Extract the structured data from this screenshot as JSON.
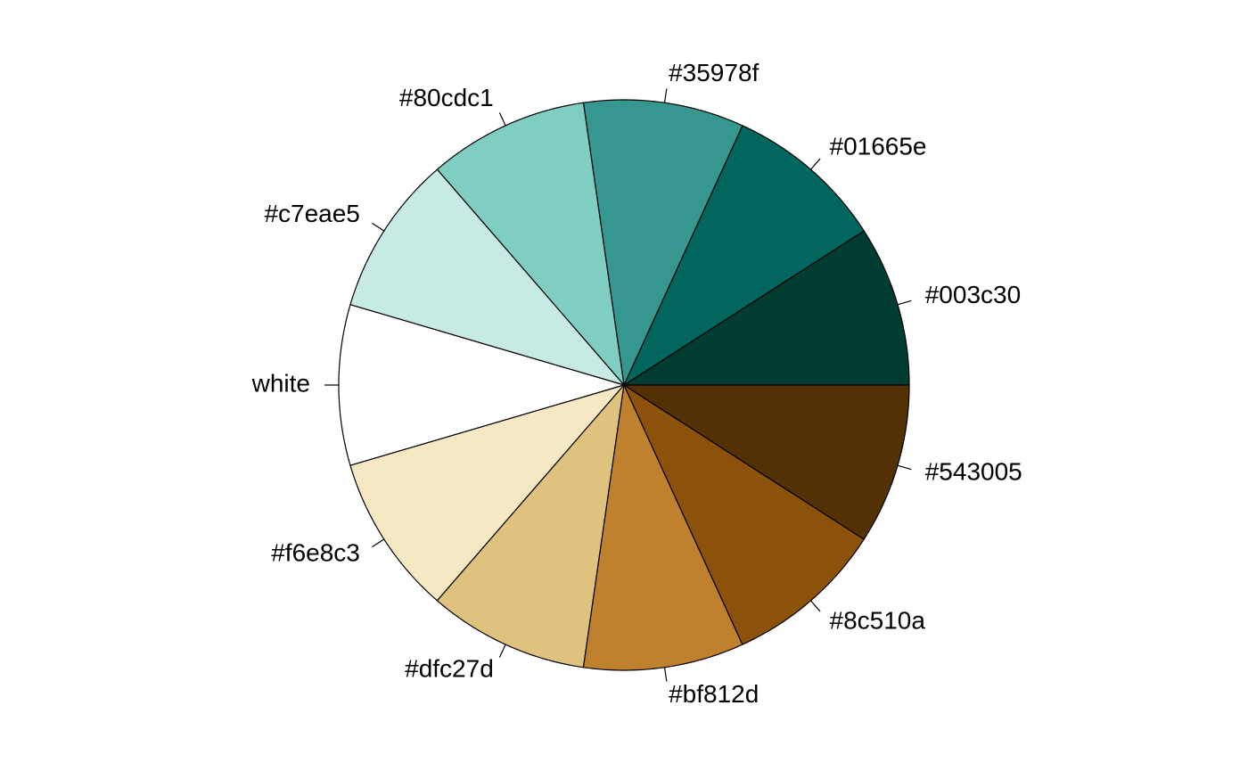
{
  "chart_data": {
    "type": "pie",
    "title": "",
    "start_angle_deg": 0,
    "direction": "counterclockwise",
    "labels": [
      "#003c30",
      "#01665e",
      "#35978f",
      "#80cdc1",
      "#c7eae5",
      "white",
      "#f6e8c3",
      "#dfc27d",
      "#bf812d",
      "#8c510a",
      "#543005"
    ],
    "values": [
      1,
      1,
      1,
      1,
      1,
      1,
      1,
      1,
      1,
      1,
      1
    ],
    "colors": [
      "#003c30",
      "#01665e",
      "#35978f",
      "#80cdc1",
      "#c7eae5",
      "#ffffff",
      "#f6e8c3",
      "#dfc27d",
      "#bf812d",
      "#8c510a",
      "#543005"
    ]
  }
}
